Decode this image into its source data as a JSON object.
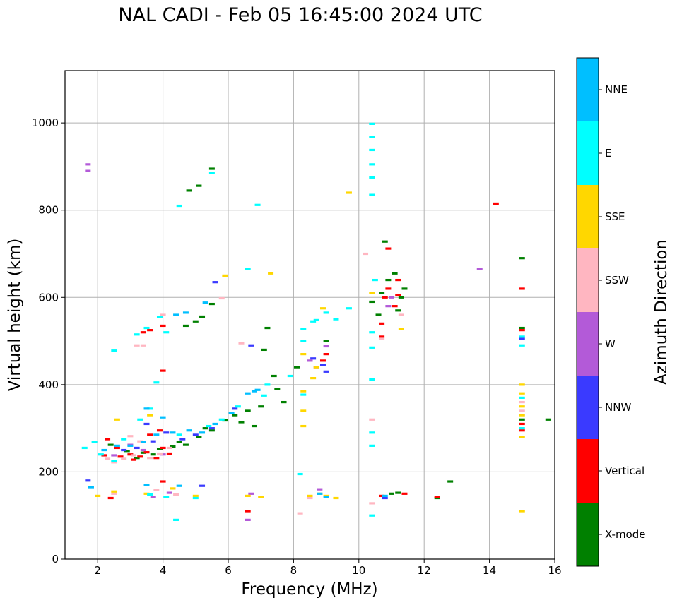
{
  "chart_data": {
    "type": "scatter",
    "title": "NAL CADI - Feb 05 16:45:00 2024 UTC",
    "xlabel": "Frequency (MHz)",
    "ylabel": "Virtual height (km)",
    "xlim": [
      1,
      16
    ],
    "ylim": [
      0,
      1120
    ],
    "xticks": [
      2,
      4,
      6,
      8,
      10,
      12,
      14,
      16
    ],
    "yticks": [
      0,
      200,
      400,
      600,
      800,
      1000
    ],
    "grid": true,
    "colorbar": {
      "label": "Azimuth Direction",
      "categories": [
        {
          "name": "X-mode",
          "color": "#008000"
        },
        {
          "name": "Vertical",
          "color": "#ff0000"
        },
        {
          "name": "NNW",
          "color": "#3a3aff"
        },
        {
          "name": "W",
          "color": "#b35ad8"
        },
        {
          "name": "SSW",
          "color": "#ffb6c1"
        },
        {
          "name": "SSE",
          "color": "#ffd700"
        },
        {
          "name": "E",
          "color": "#00ffff"
        },
        {
          "name": "NNE",
          "color": "#00bfff"
        }
      ]
    },
    "series": [
      {
        "name": "X-mode",
        "points": [
          [
            2.4,
            262
          ],
          [
            2.9,
            248
          ],
          [
            3.4,
            244
          ],
          [
            3.9,
            252
          ],
          [
            4.3,
            258
          ],
          [
            4.7,
            262
          ],
          [
            5.1,
            280
          ],
          [
            5.5,
            295
          ],
          [
            5.9,
            318
          ],
          [
            6.2,
            330
          ],
          [
            6.6,
            340
          ],
          [
            7.0,
            350
          ],
          [
            7.5,
            390
          ],
          [
            8.1,
            440
          ],
          [
            3.2,
            232
          ],
          [
            3.7,
            240
          ],
          [
            4.5,
            268
          ],
          [
            5.3,
            300
          ],
          [
            6.4,
            314
          ],
          [
            6.8,
            305
          ],
          [
            4.7,
            535
          ],
          [
            5.0,
            545
          ],
          [
            5.2,
            556
          ],
          [
            5.5,
            585
          ],
          [
            4.8,
            845
          ],
          [
            5.1,
            856
          ],
          [
            5.5,
            895
          ],
          [
            7.1,
            480
          ],
          [
            7.2,
            530
          ],
          [
            10.4,
            590
          ],
          [
            10.7,
            610
          ],
          [
            10.9,
            640
          ],
          [
            11.1,
            655
          ],
          [
            11.3,
            600
          ],
          [
            11.4,
            620
          ],
          [
            11.2,
            570
          ],
          [
            10.6,
            560
          ],
          [
            10.8,
            728
          ],
          [
            9.0,
            500
          ],
          [
            12.8,
            178
          ],
          [
            15.0,
            690
          ],
          [
            15.0,
            530
          ],
          [
            15.0,
            320
          ],
          [
            15.8,
            320
          ],
          [
            11.0,
            150
          ],
          [
            11.2,
            152
          ],
          [
            12.4,
            140
          ],
          [
            7.4,
            420
          ],
          [
            7.7,
            360
          ]
        ]
      },
      {
        "name": "Vertical",
        "points": [
          [
            2.3,
            275
          ],
          [
            2.6,
            255
          ],
          [
            3.0,
            240
          ],
          [
            3.3,
            235
          ],
          [
            3.5,
            245
          ],
          [
            3.8,
            232
          ],
          [
            4.0,
            255
          ],
          [
            3.6,
            285
          ],
          [
            3.9,
            295
          ],
          [
            4.2,
            242
          ],
          [
            2.2,
            238
          ],
          [
            2.7,
            235
          ],
          [
            3.1,
            228
          ],
          [
            3.4,
            520
          ],
          [
            3.6,
            525
          ],
          [
            4.0,
            535
          ],
          [
            4.0,
            432
          ],
          [
            2.4,
            140
          ],
          [
            4.0,
            178
          ],
          [
            6.6,
            110
          ],
          [
            8.9,
            455
          ],
          [
            9.0,
            470
          ],
          [
            10.7,
            510
          ],
          [
            10.7,
            540
          ],
          [
            10.8,
            600
          ],
          [
            10.9,
            620
          ],
          [
            11.2,
            605
          ],
          [
            11.1,
            580
          ],
          [
            10.7,
            145
          ],
          [
            11.4,
            150
          ],
          [
            12.4,
            142
          ],
          [
            14.2,
            815
          ],
          [
            15.0,
            620
          ],
          [
            15.0,
            310
          ],
          [
            15.0,
            295
          ],
          [
            15.0,
            525
          ],
          [
            10.9,
            712
          ],
          [
            11.2,
            640
          ]
        ]
      },
      {
        "name": "NNW",
        "points": [
          [
            1.7,
            180
          ],
          [
            2.8,
            250
          ],
          [
            3.2,
            255
          ],
          [
            3.7,
            270
          ],
          [
            4.6,
            275
          ],
          [
            5.0,
            285
          ],
          [
            5.5,
            300
          ],
          [
            6.2,
            345
          ],
          [
            6.7,
            490
          ],
          [
            8.9,
            445
          ],
          [
            9.0,
            430
          ],
          [
            8.6,
            460
          ],
          [
            5.6,
            635
          ],
          [
            5.2,
            168
          ],
          [
            10.8,
            140
          ],
          [
            15.0,
            505
          ],
          [
            3.5,
            310
          ],
          [
            4.1,
            290
          ]
        ]
      },
      {
        "name": "W",
        "points": [
          [
            1.7,
            890
          ],
          [
            1.7,
            905
          ],
          [
            2.5,
            238
          ],
          [
            3.0,
            262
          ],
          [
            3.4,
            250
          ],
          [
            4.0,
            240
          ],
          [
            6.7,
            150
          ],
          [
            6.6,
            90
          ],
          [
            8.5,
            455
          ],
          [
            8.7,
            440
          ],
          [
            9.0,
            488
          ],
          [
            8.8,
            160
          ],
          [
            10.9,
            580
          ],
          [
            13.7,
            665
          ],
          [
            11.0,
            600
          ],
          [
            3.7,
            142
          ],
          [
            4.2,
            152
          ]
        ]
      },
      {
        "name": "SSW",
        "points": [
          [
            2.3,
            230
          ],
          [
            2.5,
            222
          ],
          [
            2.8,
            230
          ],
          [
            3.1,
            238
          ],
          [
            3.6,
            232
          ],
          [
            3.9,
            242
          ],
          [
            4.2,
            255
          ],
          [
            3.3,
            270
          ],
          [
            3.0,
            282
          ],
          [
            4.0,
            560
          ],
          [
            3.4,
            490
          ],
          [
            2.5,
            150
          ],
          [
            3.8,
            158
          ],
          [
            4.4,
            148
          ],
          [
            6.4,
            495
          ],
          [
            8.2,
            105
          ],
          [
            8.5,
            140
          ],
          [
            10.2,
            700
          ],
          [
            10.7,
            505
          ],
          [
            15.0,
            360
          ],
          [
            15.0,
            340
          ],
          [
            11.3,
            560
          ],
          [
            5.8,
            598
          ],
          [
            10.4,
            320
          ],
          [
            10.4,
            128
          ],
          [
            3.2,
            490
          ]
        ]
      },
      {
        "name": "SSE",
        "points": [
          [
            2.0,
            145
          ],
          [
            2.5,
            155
          ],
          [
            3.5,
            150
          ],
          [
            4.3,
            162
          ],
          [
            5.0,
            145
          ],
          [
            6.6,
            145
          ],
          [
            7.0,
            142
          ],
          [
            8.3,
            470
          ],
          [
            8.3,
            385
          ],
          [
            8.3,
            340
          ],
          [
            8.3,
            305
          ],
          [
            8.6,
            415
          ],
          [
            8.7,
            440
          ],
          [
            8.8,
            150
          ],
          [
            9.0,
            145
          ],
          [
            8.5,
            145
          ],
          [
            8.9,
            575
          ],
          [
            9.7,
            840
          ],
          [
            10.4,
            610
          ],
          [
            11.3,
            528
          ],
          [
            15.0,
            400
          ],
          [
            15.0,
            380
          ],
          [
            15.0,
            350
          ],
          [
            15.0,
            330
          ],
          [
            15.0,
            280
          ],
          [
            15.0,
            110
          ],
          [
            7.3,
            655
          ],
          [
            5.9,
            650
          ],
          [
            9.3,
            140
          ],
          [
            2.6,
            320
          ],
          [
            3.6,
            330
          ]
        ]
      },
      {
        "name": "E",
        "points": [
          [
            1.6,
            255
          ],
          [
            1.9,
            268
          ],
          [
            2.1,
            240
          ],
          [
            2.5,
            225
          ],
          [
            2.8,
            275
          ],
          [
            3.3,
            320
          ],
          [
            3.6,
            345
          ],
          [
            4.5,
            285
          ],
          [
            5.4,
            305
          ],
          [
            5.8,
            320
          ],
          [
            6.3,
            350
          ],
          [
            7.1,
            375
          ],
          [
            7.2,
            400
          ],
          [
            3.2,
            515
          ],
          [
            3.5,
            530
          ],
          [
            3.9,
            555
          ],
          [
            4.1,
            520
          ],
          [
            2.5,
            478
          ],
          [
            3.8,
            405
          ],
          [
            4.4,
            90
          ],
          [
            3.6,
            148
          ],
          [
            4.1,
            142
          ],
          [
            5.0,
            140
          ],
          [
            8.2,
            195
          ],
          [
            8.3,
            500
          ],
          [
            8.3,
            528
          ],
          [
            8.7,
            548
          ],
          [
            9.0,
            565
          ],
          [
            9.3,
            550
          ],
          [
            9.7,
            575
          ],
          [
            10.4,
            998
          ],
          [
            10.4,
            968
          ],
          [
            10.4,
            938
          ],
          [
            10.4,
            905
          ],
          [
            10.4,
            875
          ],
          [
            10.4,
            835
          ],
          [
            10.4,
            520
          ],
          [
            10.4,
            485
          ],
          [
            10.4,
            412
          ],
          [
            10.4,
            290
          ],
          [
            10.4,
            260
          ],
          [
            10.4,
            100
          ],
          [
            10.5,
            640
          ],
          [
            6.6,
            665
          ],
          [
            6.9,
            812
          ],
          [
            15.0,
            490
          ],
          [
            15.0,
            510
          ],
          [
            15.0,
            370
          ],
          [
            15.0,
            300
          ],
          [
            7.9,
            420
          ],
          [
            4.5,
            810
          ],
          [
            5.5,
            885
          ],
          [
            8.3,
            377
          ],
          [
            8.6,
            545
          ]
        ]
      },
      {
        "name": "NNE",
        "points": [
          [
            2.2,
            250
          ],
          [
            2.6,
            260
          ],
          [
            3.0,
            260
          ],
          [
            3.4,
            268
          ],
          [
            3.8,
            285
          ],
          [
            4.3,
            290
          ],
          [
            4.8,
            295
          ],
          [
            5.2,
            290
          ],
          [
            5.6,
            310
          ],
          [
            6.1,
            335
          ],
          [
            6.6,
            380
          ],
          [
            6.9,
            388
          ],
          [
            3.5,
            345
          ],
          [
            4.0,
            325
          ],
          [
            4.7,
            565
          ],
          [
            4.4,
            560
          ],
          [
            5.3,
            588
          ],
          [
            1.8,
            165
          ],
          [
            3.5,
            170
          ],
          [
            4.5,
            168
          ],
          [
            8.8,
            150
          ],
          [
            9.0,
            142
          ],
          [
            10.8,
            145
          ],
          [
            6.8,
            385
          ]
        ]
      }
    ]
  }
}
